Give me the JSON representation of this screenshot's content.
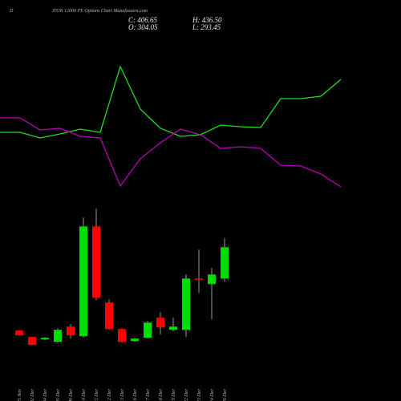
{
  "chart_data": [
    {
      "type": "line",
      "ylim": [
        0,
        100
      ],
      "series": [
        {
          "color": "#22dd22",
          "values": [
            47.5,
            47.5,
            44,
            46.5,
            49.5,
            47.5,
            88.5,
            62,
            50,
            45,
            46,
            52,
            51,
            50.5,
            68.5,
            68.5,
            70,
            80.5
          ]
        },
        {
          "color": "#bb00bb",
          "values": [
            56.5,
            56.5,
            49,
            50,
            45,
            44,
            14,
            31,
            41,
            49.5,
            46,
            37.5,
            38.5,
            37.5,
            27,
            26.5,
            21.5,
            13.5
          ]
        }
      ]
    },
    {
      "type": "candlestick",
      "title": "ITON 12000 PE Options Chart Munafasutra.com",
      "prefix": "D",
      "annotations": [
        "C: 406.65",
        "O: 304.05",
        "H: 436.50",
        "L: 293.45"
      ],
      "up_color": "#00dd00",
      "down_color": "#ff0000",
      "ylim": [
        60,
        560
      ],
      "categories": [
        "25 Nov",
        "02 Dec",
        "04 Dec",
        "05 Dec",
        "09 Dec",
        "10 Dec",
        "11 Dec",
        "12 Dec",
        "13 Dec",
        "16 Dec",
        "17 Dec",
        "18 Dec",
        "19 Dec",
        "22 Dec",
        "23 Dec",
        "24 Dec",
        "26 Dec"
      ],
      "open": [
        133.1,
        112.1,
        104.2,
        96.3,
        146.3,
        114.7,
        475.0,
        225.2,
        138.4,
        98.9,
        109.5,
        175.2,
        135.8,
        135.8,
        304.1,
        285.7,
        304.05
      ],
      "high": [
        133.1,
        112.1,
        112.1,
        141.0,
        154.2,
        504.0,
        532.9,
        235.7,
        141.0,
        109.5,
        164.7,
        193.6,
        175.2,
        317.2,
        398.8,
        338.3,
        436.5
      ],
      "low": [
        117.4,
        85.8,
        101.6,
        93.7,
        106.9,
        109.5,
        233.1,
        135.8,
        93.7,
        96.3,
        106.9,
        120.0,
        130.5,
        112.1,
        256.8,
        170.0,
        293.45
      ],
      "close": [
        117.4,
        85.8,
        109.5,
        135.8,
        117.4,
        475.0,
        241.0,
        138.4,
        96.3,
        106.9,
        159.4,
        143.6,
        146.3,
        304.1,
        301.4,
        317.2,
        406.65
      ]
    }
  ]
}
